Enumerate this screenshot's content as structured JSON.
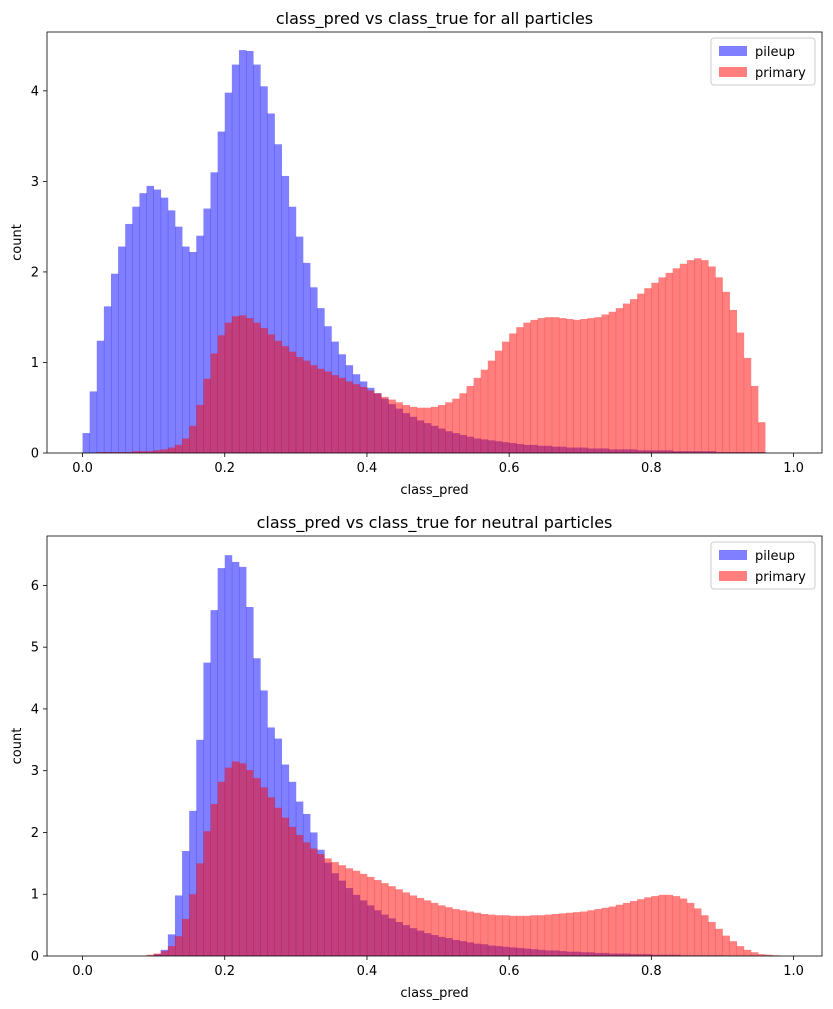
{
  "colors": {
    "pileup": "#0000ff",
    "primary": "#ff0000",
    "alpha": 0.5
  },
  "chart_data": [
    {
      "type": "bar",
      "title": "class_pred vs class_true for all particles",
      "xlabel": "class_pred",
      "ylabel": "count",
      "xlim": [
        -0.05,
        1.04
      ],
      "ylim": [
        0,
        4.65
      ],
      "xticks": [
        0.0,
        0.2,
        0.4,
        0.6,
        0.8,
        1.0
      ],
      "xtick_labels": [
        "0.0",
        "0.2",
        "0.4",
        "0.6",
        "0.8",
        "1.0"
      ],
      "yticks": [
        0,
        1,
        2,
        3,
        4
      ],
      "ytick_labels": [
        "0",
        "1",
        "2",
        "3",
        "4"
      ],
      "legend_position": "top-right",
      "bins": {
        "start": 0.0,
        "width": 0.01,
        "count": 100
      },
      "series": [
        {
          "name": "pileup",
          "values": [
            0.22,
            0.68,
            1.24,
            1.62,
            1.98,
            2.28,
            2.53,
            2.72,
            2.87,
            2.95,
            2.91,
            2.82,
            2.68,
            2.5,
            2.28,
            2.22,
            2.4,
            2.7,
            3.1,
            3.55,
            3.98,
            4.29,
            4.45,
            4.44,
            4.29,
            4.05,
            3.75,
            3.41,
            3.06,
            2.72,
            2.39,
            2.1,
            1.83,
            1.6,
            1.4,
            1.23,
            1.09,
            0.97,
            0.87,
            0.79,
            0.72,
            0.66,
            0.6,
            0.54,
            0.49,
            0.44,
            0.4,
            0.36,
            0.33,
            0.3,
            0.27,
            0.24,
            0.22,
            0.2,
            0.18,
            0.16,
            0.15,
            0.14,
            0.13,
            0.12,
            0.11,
            0.1,
            0.09,
            0.09,
            0.08,
            0.08,
            0.07,
            0.07,
            0.06,
            0.06,
            0.06,
            0.05,
            0.05,
            0.05,
            0.04,
            0.04,
            0.04,
            0.04,
            0.03,
            0.03,
            0.03,
            0.03,
            0.03,
            0.02,
            0.02,
            0.02,
            0.02,
            0.02,
            0.02,
            0.01,
            0.01,
            0.01,
            0.01,
            0.01,
            0.01,
            0.01,
            0.0,
            0.0,
            0.0,
            0.0
          ]
        },
        {
          "name": "primary",
          "values": [
            0.0,
            0.0,
            0.01,
            0.01,
            0.01,
            0.01,
            0.01,
            0.02,
            0.02,
            0.02,
            0.03,
            0.04,
            0.06,
            0.09,
            0.16,
            0.3,
            0.53,
            0.82,
            1.1,
            1.3,
            1.44,
            1.51,
            1.52,
            1.49,
            1.44,
            1.38,
            1.31,
            1.24,
            1.18,
            1.12,
            1.06,
            1.02,
            0.97,
            0.93,
            0.9,
            0.86,
            0.83,
            0.79,
            0.76,
            0.73,
            0.69,
            0.66,
            0.62,
            0.59,
            0.56,
            0.53,
            0.51,
            0.5,
            0.5,
            0.51,
            0.53,
            0.56,
            0.6,
            0.66,
            0.74,
            0.83,
            0.92,
            1.02,
            1.13,
            1.23,
            1.32,
            1.39,
            1.44,
            1.47,
            1.49,
            1.5,
            1.5,
            1.49,
            1.48,
            1.47,
            1.48,
            1.49,
            1.5,
            1.53,
            1.56,
            1.6,
            1.65,
            1.7,
            1.76,
            1.82,
            1.88,
            1.94,
            1.99,
            2.04,
            2.09,
            2.13,
            2.15,
            2.13,
            2.06,
            1.94,
            1.78,
            1.58,
            1.33,
            1.05,
            0.74,
            0.34,
            0.0,
            0.0,
            0.0,
            0.0
          ]
        }
      ]
    },
    {
      "type": "bar",
      "title": "class_pred vs class_true for neutral particles",
      "xlabel": "class_pred",
      "ylabel": "count",
      "xlim": [
        -0.05,
        1.04
      ],
      "ylim": [
        0,
        6.8
      ],
      "xticks": [
        0.0,
        0.2,
        0.4,
        0.6,
        0.8,
        1.0
      ],
      "xtick_labels": [
        "0.0",
        "0.2",
        "0.4",
        "0.6",
        "0.8",
        "1.0"
      ],
      "yticks": [
        0,
        1,
        2,
        3,
        4,
        5,
        6
      ],
      "ytick_labels": [
        "0",
        "1",
        "2",
        "3",
        "4",
        "5",
        "6"
      ],
      "legend_position": "top-right",
      "bins": {
        "start": 0.0,
        "width": 0.01,
        "count": 100
      },
      "series": [
        {
          "name": "pileup",
          "values": [
            0.0,
            0.0,
            0.0,
            0.0,
            0.0,
            0.0,
            0.0,
            0.0,
            0.0,
            0.0,
            0.03,
            0.1,
            0.35,
            0.98,
            1.7,
            2.35,
            3.5,
            4.75,
            5.6,
            6.28,
            6.49,
            6.38,
            6.3,
            5.65,
            4.82,
            4.3,
            3.7,
            3.52,
            3.1,
            2.82,
            2.5,
            2.3,
            2.0,
            1.72,
            1.51,
            1.34,
            1.22,
            1.1,
            0.99,
            0.9,
            0.82,
            0.74,
            0.67,
            0.61,
            0.55,
            0.5,
            0.45,
            0.41,
            0.37,
            0.34,
            0.31,
            0.29,
            0.26,
            0.24,
            0.22,
            0.2,
            0.19,
            0.17,
            0.16,
            0.15,
            0.14,
            0.13,
            0.12,
            0.11,
            0.1,
            0.09,
            0.09,
            0.08,
            0.07,
            0.07,
            0.06,
            0.06,
            0.05,
            0.05,
            0.04,
            0.04,
            0.04,
            0.03,
            0.03,
            0.03,
            0.02,
            0.02,
            0.02,
            0.02,
            0.01,
            0.01,
            0.01,
            0.01,
            0.01,
            0.01,
            0.0,
            0.0,
            0.0,
            0.0,
            0.0,
            0.0,
            0.0,
            0.0,
            0.0,
            0.0
          ]
        },
        {
          "name": "primary",
          "values": [
            0.0,
            0.0,
            0.0,
            0.0,
            0.0,
            0.0,
            0.0,
            0.0,
            0.0,
            0.02,
            0.04,
            0.08,
            0.16,
            0.32,
            0.6,
            1.0,
            1.5,
            2.02,
            2.46,
            2.82,
            3.05,
            3.15,
            3.12,
            3.01,
            2.88,
            2.73,
            2.57,
            2.4,
            2.24,
            2.09,
            1.96,
            1.84,
            1.74,
            1.65,
            1.58,
            1.52,
            1.47,
            1.42,
            1.38,
            1.33,
            1.28,
            1.23,
            1.18,
            1.13,
            1.08,
            1.03,
            0.98,
            0.94,
            0.9,
            0.86,
            0.82,
            0.79,
            0.76,
            0.74,
            0.72,
            0.7,
            0.68,
            0.67,
            0.66,
            0.66,
            0.65,
            0.65,
            0.65,
            0.66,
            0.66,
            0.67,
            0.68,
            0.69,
            0.7,
            0.71,
            0.72,
            0.74,
            0.76,
            0.78,
            0.8,
            0.83,
            0.86,
            0.89,
            0.92,
            0.95,
            0.97,
            0.99,
            0.99,
            0.97,
            0.93,
            0.86,
            0.77,
            0.66,
            0.55,
            0.44,
            0.33,
            0.24,
            0.16,
            0.1,
            0.06,
            0.03,
            0.02,
            0.01,
            0.0,
            0.0
          ]
        }
      ]
    }
  ]
}
